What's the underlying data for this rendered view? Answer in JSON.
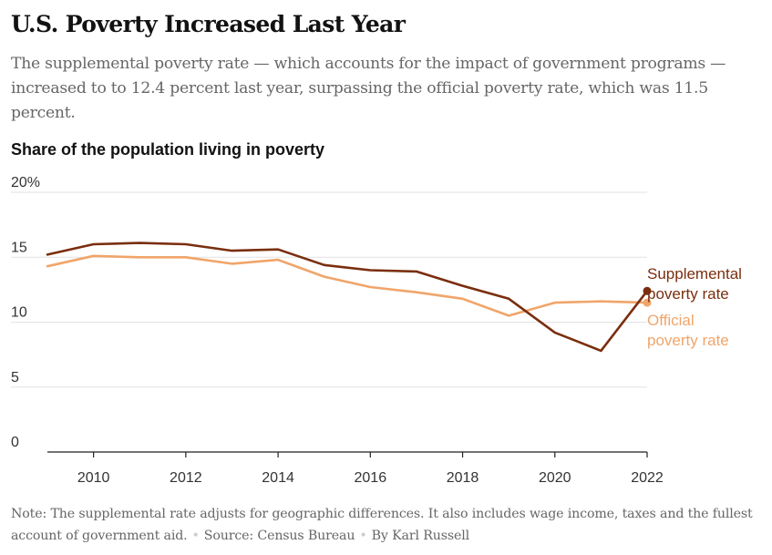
{
  "headline": "U.S. Poverty Increased Last Year",
  "dek": "The supplemental poverty rate — which accounts for the impact of government programs — increased to to 12.4 percent last year, surpassing the official poverty rate, which was 11.5 percent.",
  "chart_label": "Share of the population living in poverty",
  "note": "Note: The supplemental rate adjusts for geographic differences. It also includes wage income, taxes and the fullest account of government aid.",
  "separator": "•",
  "source": "Source: Census Bureau",
  "byline": "By Karl Russell",
  "colors": {
    "supplemental": "#7a2e0e",
    "official": "#f0a56a",
    "grid": "#e2e2e2",
    "axis": "#222222"
  },
  "chart_data": {
    "type": "line",
    "title": "Share of the population living in poverty",
    "xlabel": "",
    "ylabel": "",
    "xlim": [
      2009,
      2022
    ],
    "ylim": [
      0,
      20
    ],
    "yticks": [
      0,
      5,
      10,
      15,
      20
    ],
    "ytick_labels": [
      "0",
      "5",
      "10",
      "15",
      "20%"
    ],
    "xticks": [
      2010,
      2012,
      2014,
      2016,
      2018,
      2020,
      2022
    ],
    "xtick_labels": [
      "2010",
      "2012",
      "2014",
      "2016",
      "2018",
      "2020",
      "2022"
    ],
    "grid": true,
    "legend": "direct labels at right end of lines",
    "x": [
      2009,
      2010,
      2011,
      2012,
      2013,
      2014,
      2015,
      2016,
      2017,
      2018,
      2019,
      2020,
      2021,
      2022
    ],
    "series": [
      {
        "name": "Supplemental poverty rate",
        "label_lines": [
          "Supplemental",
          "poverty rate"
        ],
        "color": "#7a2e0e",
        "values": [
          15.2,
          16.0,
          16.1,
          16.0,
          15.5,
          15.6,
          14.4,
          14.0,
          13.9,
          12.8,
          11.8,
          9.2,
          7.8,
          12.4
        ]
      },
      {
        "name": "Official poverty rate",
        "label_lines": [
          "Official",
          "poverty rate"
        ],
        "color": "#f0a56a",
        "values": [
          14.3,
          15.1,
          15.0,
          15.0,
          14.5,
          14.8,
          13.5,
          12.7,
          12.3,
          11.8,
          10.5,
          11.5,
          11.6,
          11.5
        ]
      }
    ]
  }
}
